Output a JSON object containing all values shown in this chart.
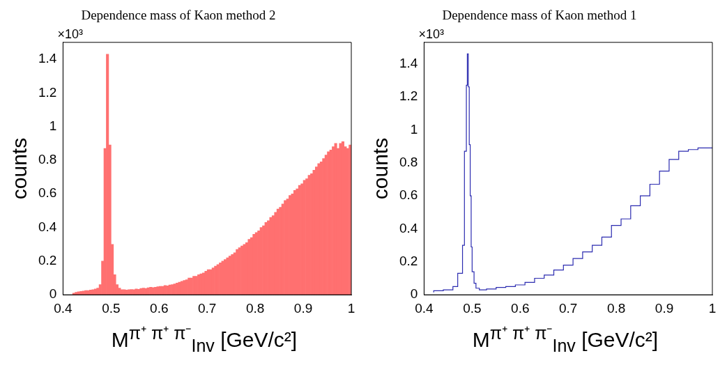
{
  "chart_data": [
    {
      "type": "histogram",
      "title": "Dependence mass of Kaon method 2",
      "xlabel": "M$^{π⁺ π⁺ π⁻}$$_{Inv}$ [GeV/c²]",
      "ylabel": "counts",
      "annotations": [
        "×10³"
      ],
      "color": "#ff7070",
      "bins": [
        0.42,
        0.425,
        0.43,
        0.435,
        0.44,
        0.445,
        0.45,
        0.455,
        0.46,
        0.465,
        0.47,
        0.475,
        0.48,
        0.485,
        0.49,
        0.495,
        0.5,
        0.505,
        0.51,
        0.515,
        0.52,
        0.525,
        0.53,
        0.535,
        0.54,
        0.545,
        0.55,
        0.555,
        0.56,
        0.565,
        0.57,
        0.575,
        0.58,
        0.585,
        0.59,
        0.595,
        0.6,
        0.605,
        0.61,
        0.615,
        0.62,
        0.625,
        0.63,
        0.635,
        0.64,
        0.645,
        0.65,
        0.655,
        0.66,
        0.665,
        0.67,
        0.675,
        0.68,
        0.685,
        0.69,
        0.695,
        0.7,
        0.705,
        0.71,
        0.715,
        0.72,
        0.725,
        0.73,
        0.735,
        0.74,
        0.745,
        0.75,
        0.755,
        0.76,
        0.765,
        0.77,
        0.775,
        0.78,
        0.785,
        0.79,
        0.795,
        0.8,
        0.805,
        0.81,
        0.815,
        0.82,
        0.825,
        0.83,
        0.835,
        0.84,
        0.845,
        0.85,
        0.855,
        0.86,
        0.865,
        0.87,
        0.875,
        0.88,
        0.885,
        0.89,
        0.895,
        0.9,
        0.905,
        0.91,
        0.915,
        0.92,
        0.925,
        0.93,
        0.935,
        0.94,
        0.945,
        0.95,
        0.955,
        0.96,
        0.965,
        0.97,
        0.975,
        0.98,
        0.985,
        0.99,
        0.995,
        1.0
      ],
      "values": [
        0.01,
        0.015,
        0.018,
        0.02,
        0.022,
        0.025,
        0.025,
        0.028,
        0.03,
        0.035,
        0.04,
        0.06,
        0.2,
        0.87,
        1.43,
        0.89,
        0.3,
        0.12,
        0.06,
        0.04,
        0.03,
        0.03,
        0.028,
        0.03,
        0.032,
        0.03,
        0.035,
        0.033,
        0.038,
        0.04,
        0.038,
        0.042,
        0.045,
        0.043,
        0.045,
        0.048,
        0.05,
        0.05,
        0.055,
        0.053,
        0.058,
        0.06,
        0.065,
        0.07,
        0.075,
        0.08,
        0.085,
        0.09,
        0.1,
        0.1,
        0.11,
        0.11,
        0.12,
        0.125,
        0.13,
        0.14,
        0.15,
        0.15,
        0.16,
        0.17,
        0.18,
        0.19,
        0.2,
        0.21,
        0.22,
        0.23,
        0.24,
        0.25,
        0.27,
        0.28,
        0.29,
        0.3,
        0.31,
        0.33,
        0.34,
        0.36,
        0.37,
        0.38,
        0.4,
        0.41,
        0.43,
        0.44,
        0.46,
        0.47,
        0.49,
        0.51,
        0.52,
        0.54,
        0.56,
        0.57,
        0.59,
        0.6,
        0.62,
        0.63,
        0.65,
        0.66,
        0.68,
        0.69,
        0.71,
        0.72,
        0.74,
        0.76,
        0.78,
        0.79,
        0.81,
        0.83,
        0.85,
        0.86,
        0.88,
        0.9,
        0.87,
        0.9,
        0.91,
        0.88,
        0.87,
        0.89
      ],
      "xlim": [
        0.4,
        1.0
      ],
      "xticks": [
        0.4,
        0.5,
        0.6,
        0.7,
        0.8,
        0.9,
        1
      ],
      "ylim": [
        0,
        1.5
      ],
      "yticks": [
        0,
        0.2,
        0.4,
        0.6,
        0.8,
        1,
        1.2,
        1.4
      ],
      "grid": false,
      "legend": false
    },
    {
      "type": "step",
      "title": "Dependence mass of Kaon method 1",
      "xlabel": "M$^{π⁺ π⁺ π⁻}$$_{Inv}$ [GeV/c²]",
      "ylabel": "counts",
      "annotations": [
        "×10³"
      ],
      "color": "#2b2bb0",
      "x": [
        0.42,
        0.44,
        0.46,
        0.47,
        0.48,
        0.484,
        0.488,
        0.49,
        0.492,
        0.494,
        0.496,
        0.498,
        0.5,
        0.504,
        0.508,
        0.515,
        0.53,
        0.55,
        0.57,
        0.59,
        0.61,
        0.63,
        0.65,
        0.67,
        0.69,
        0.71,
        0.73,
        0.75,
        0.77,
        0.79,
        0.81,
        0.83,
        0.85,
        0.87,
        0.89,
        0.91,
        0.93,
        0.95,
        0.97,
        0.99,
        1.0
      ],
      "values": [
        0.015,
        0.025,
        0.03,
        0.05,
        0.13,
        0.3,
        0.87,
        1.27,
        1.46,
        1.26,
        0.91,
        0.6,
        0.29,
        0.14,
        0.07,
        0.04,
        0.03,
        0.035,
        0.045,
        0.05,
        0.06,
        0.075,
        0.1,
        0.12,
        0.15,
        0.18,
        0.22,
        0.26,
        0.3,
        0.35,
        0.42,
        0.46,
        0.54,
        0.6,
        0.67,
        0.75,
        0.82,
        0.87,
        0.88,
        0.89,
        0.89
      ],
      "xlim": [
        0.4,
        1.0
      ],
      "xticks": [
        0.4,
        0.5,
        0.6,
        0.7,
        0.8,
        0.9,
        1
      ],
      "ylim": [
        0,
        1.53
      ],
      "yticks": [
        0,
        0.2,
        0.4,
        0.6,
        0.8,
        1,
        1.2,
        1.4
      ],
      "grid": false,
      "legend": false
    }
  ]
}
